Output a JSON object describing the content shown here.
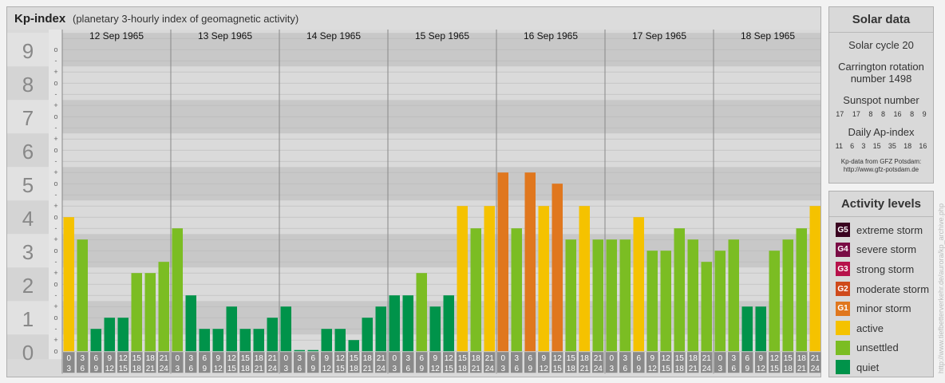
{
  "header": {
    "title": "Kp-index",
    "subtitle": "(planetary 3-hourly index of geomagnetic activity)"
  },
  "chart_data": {
    "type": "bar",
    "kp_levels": [
      "0",
      "1",
      "2",
      "3",
      "4",
      "5",
      "6",
      "7",
      "8",
      "9"
    ],
    "sub_ticks": [
      "o",
      "+",
      "-"
    ],
    "dates": [
      "12 Sep 1965",
      "13 Sep 1965",
      "14 Sep 1965",
      "15 Sep 1965",
      "16 Sep 1965",
      "17 Sep 1965",
      "18 Sep 1965"
    ],
    "hour_start": [
      "0",
      "3",
      "6",
      "9",
      "12",
      "15",
      "18",
      "21"
    ],
    "hour_end": [
      "3",
      "6",
      "9",
      "12",
      "15",
      "18",
      "21",
      "24"
    ],
    "ylim": [
      0,
      9
    ],
    "values": [
      [
        4.0,
        3.333,
        0.667,
        1.0,
        1.0,
        2.333,
        2.333,
        2.667
      ],
      [
        3.667,
        1.667,
        0.667,
        0.667,
        1.333,
        0.667,
        0.667,
        1.0
      ],
      [
        1.333,
        0,
        0,
        0.667,
        0.667,
        0.333,
        1.0,
        1.333
      ],
      [
        1.667,
        1.667,
        2.333,
        1.333,
        1.667,
        4.333,
        3.667,
        4.333
      ],
      [
        5.333,
        3.667,
        5.333,
        4.333,
        5.0,
        3.333,
        4.333,
        3.333
      ],
      [
        3.333,
        3.333,
        4.0,
        3.0,
        3.0,
        3.667,
        3.333,
        2.667
      ],
      [
        3.0,
        3.333,
        1.333,
        1.333,
        3.0,
        3.333,
        3.667,
        4.333
      ]
    ],
    "colors": {
      "quiet": "#00934a",
      "unsettled": "#7bbd23",
      "active": "#f5c200",
      "G1": "#e0771e",
      "G2": "#cf4a1b",
      "G3": "#b7124b",
      "G4": "#7a0c45",
      "G5": "#3a0320"
    },
    "grid": true
  },
  "solar": {
    "title": "Solar data",
    "cycle": "Solar cycle 20",
    "carrington_line1": "Carrington rotation",
    "carrington_line2": "number 1498",
    "sunspot_label": "Sunspot number",
    "sunspot_values": [
      "17",
      "17",
      "8",
      "8",
      "16",
      "8",
      "9"
    ],
    "ap_label": "Daily Ap-index",
    "ap_values": [
      "11",
      "6",
      "3",
      "15",
      "35",
      "18",
      "16"
    ],
    "credit_line1": "Kp-data from GFZ Potsdam:",
    "credit_line2": "http://www.gfz-potsdam.de"
  },
  "activity": {
    "title": "Activity levels",
    "items": [
      {
        "code": "G5",
        "label": "extreme storm",
        "color": "#3a0320"
      },
      {
        "code": "G4",
        "label": "severe storm",
        "color": "#7a0c45"
      },
      {
        "code": "G3",
        "label": "strong storm",
        "color": "#b7124b"
      },
      {
        "code": "G2",
        "label": "moderate storm",
        "color": "#cf4a1b"
      },
      {
        "code": "G1",
        "label": "minor storm",
        "color": "#e0771e"
      },
      {
        "code": "",
        "label": "active",
        "color": "#f5c200"
      },
      {
        "code": "",
        "label": "unsettled",
        "color": "#7bbd23"
      },
      {
        "code": "",
        "label": "quiet",
        "color": "#00934a"
      }
    ]
  },
  "watermark": "http://www.tiefbetterverkehr.de/aurora/kp_archive.php"
}
